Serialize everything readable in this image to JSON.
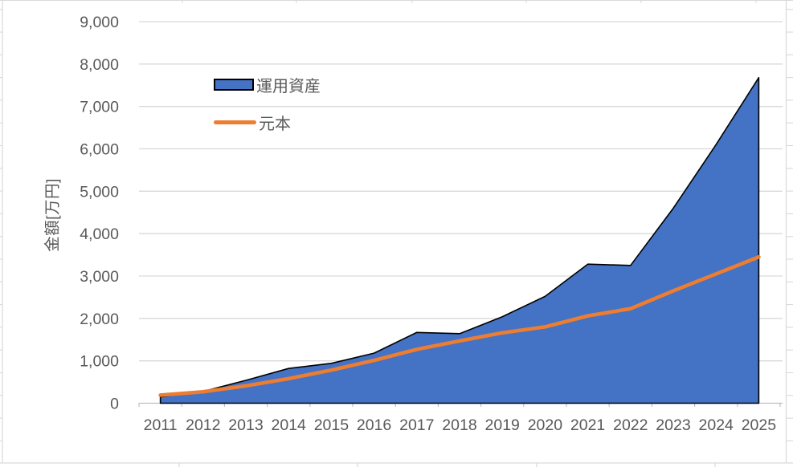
{
  "chart_data": {
    "type": "area",
    "title": "",
    "ylabel": "金額[万円]",
    "xlabel": "",
    "categories": [
      "2011",
      "2012",
      "2013",
      "2014",
      "2015",
      "2016",
      "2017",
      "2018",
      "2019",
      "2020",
      "2021",
      "2022",
      "2023",
      "2024",
      "2025"
    ],
    "series": [
      {
        "name": "運用資産",
        "type": "area",
        "fill": "#4472C4",
        "outline": "#000000",
        "values": [
          150,
          280,
          540,
          820,
          940,
          1180,
          1670,
          1640,
          2040,
          2520,
          3280,
          3250,
          4600,
          6100,
          7680
        ]
      },
      {
        "name": "元本",
        "type": "line",
        "color": "#ED7D31",
        "values": [
          190,
          270,
          410,
          580,
          780,
          1010,
          1270,
          1470,
          1660,
          1800,
          2060,
          2230,
          2650,
          3050,
          3450
        ]
      }
    ],
    "ylim": [
      0,
      9000
    ],
    "ytick_step": 1000,
    "yticks": [
      "0",
      "1,000",
      "2,000",
      "3,000",
      "4,000",
      "5,000",
      "6,000",
      "7,000",
      "8,000",
      "9,000"
    ],
    "grid": true,
    "legend_position": "inside-upper-left",
    "colors": {
      "axis_text": "#595959",
      "gridline": "#D9D9D9",
      "axis_line": "#BFBFBF",
      "sheet_edge": "#D9D9D9"
    }
  }
}
